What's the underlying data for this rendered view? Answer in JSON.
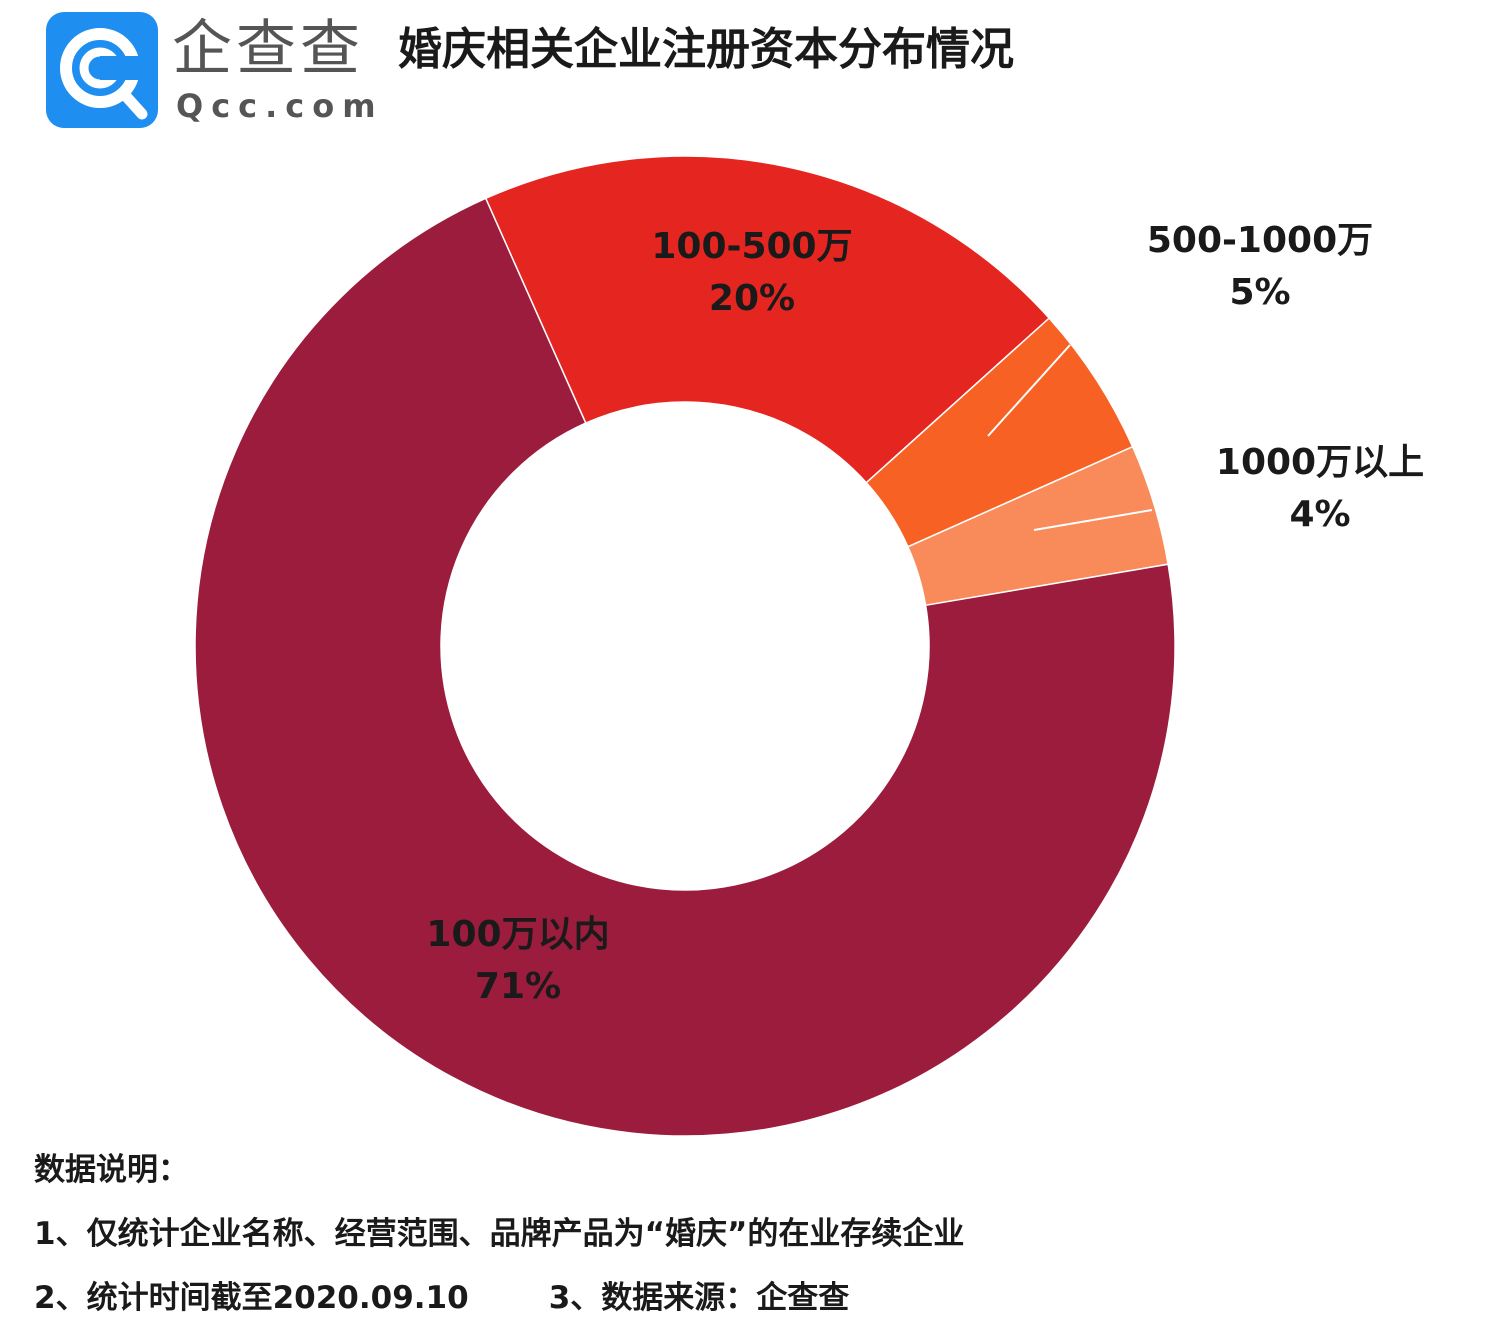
{
  "header": {
    "logo_cn": "企查查",
    "logo_en": "Qcc.com",
    "title": "婚庆相关企业注册资本分布情况"
  },
  "chart_data": {
    "type": "pie",
    "title": "婚庆相关企业注册资本分布情况",
    "donut": true,
    "slices": [
      {
        "label": "100-500万",
        "percent_label": "20%",
        "value": 20,
        "color": "#e52620"
      },
      {
        "label": "500-1000万",
        "percent_label": "5%",
        "value": 5,
        "color": "#f76124"
      },
      {
        "label": "1000万以上",
        "percent_label": "4%",
        "value": 4,
        "color": "#f98a59"
      },
      {
        "label": "100万以内",
        "percent_label": "71%",
        "value": 71,
        "color": "#9b1c3c"
      }
    ]
  },
  "notes": {
    "heading": "数据说明：",
    "line1": "1、仅统计企业名称、经营范围、品牌产品为“婚庆”的在业存续企业",
    "line2a": "2、统计时间截至2020.09.10",
    "line2b": "3、数据来源：企查查"
  },
  "colors": {
    "logo_blue": "#1e8ff0"
  }
}
